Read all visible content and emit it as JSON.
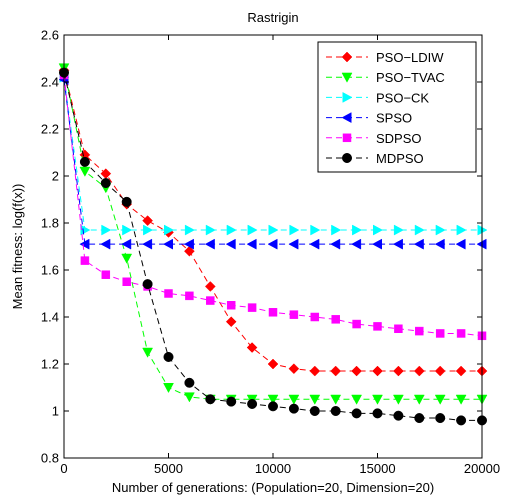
{
  "chart_data": {
    "type": "line",
    "title": "Rastrigin",
    "xlabel": "Number of generations: (Population=20, Dimension=20)",
    "ylabel": "Mean fitness: log(f(x))",
    "xlim": [
      0,
      20000
    ],
    "ylim": [
      0.8,
      2.6
    ],
    "xticks": [
      0,
      5000,
      10000,
      15000,
      20000
    ],
    "xtick_labels": [
      "0",
      "5000",
      "10000",
      "15000",
      "20000"
    ],
    "yticks": [
      0.8,
      1.0,
      1.2,
      1.4,
      1.6,
      1.8,
      2.0,
      2.2,
      2.4,
      2.6
    ],
    "ytick_labels": [
      "0.8",
      "1",
      "1.2",
      "1.4",
      "1.6",
      "1.8",
      "2",
      "2.2",
      "2.4",
      "2.6"
    ],
    "grid": false,
    "legend_position": "top-right",
    "x": [
      0,
      1000,
      2000,
      3000,
      4000,
      5000,
      6000,
      7000,
      8000,
      9000,
      10000,
      11000,
      12000,
      13000,
      14000,
      15000,
      16000,
      17000,
      18000,
      19000,
      20000
    ],
    "series": [
      {
        "name": "PSO−LDIW",
        "color": "#ff0000",
        "marker": "diamond",
        "values": [
          2.45,
          2.09,
          2.01,
          1.88,
          1.81,
          1.76,
          1.68,
          1.53,
          1.38,
          1.27,
          1.2,
          1.18,
          1.17,
          1.17,
          1.17,
          1.17,
          1.17,
          1.17,
          1.17,
          1.17,
          1.17
        ]
      },
      {
        "name": "PSO−TVAC",
        "color": "#00ff00",
        "marker": "triangle-down",
        "values": [
          2.46,
          2.02,
          1.95,
          1.65,
          1.25,
          1.1,
          1.06,
          1.05,
          1.05,
          1.05,
          1.05,
          1.05,
          1.05,
          1.05,
          1.05,
          1.05,
          1.05,
          1.05,
          1.05,
          1.05,
          1.05
        ]
      },
      {
        "name": "PSO−CK",
        "color": "#00ffff",
        "marker": "triangle-right",
        "values": [
          2.42,
          1.77,
          1.77,
          1.77,
          1.77,
          1.77,
          1.77,
          1.77,
          1.77,
          1.77,
          1.77,
          1.77,
          1.77,
          1.77,
          1.77,
          1.77,
          1.77,
          1.77,
          1.77,
          1.77,
          1.77
        ]
      },
      {
        "name": "SPSO",
        "color": "#0000ff",
        "marker": "triangle-left",
        "values": [
          2.41,
          1.71,
          1.71,
          1.71,
          1.71,
          1.71,
          1.71,
          1.71,
          1.71,
          1.71,
          1.71,
          1.71,
          1.71,
          1.71,
          1.71,
          1.71,
          1.71,
          1.71,
          1.71,
          1.71,
          1.71
        ]
      },
      {
        "name": "SDPSO",
        "color": "#ff00ff",
        "marker": "square",
        "values": [
          2.43,
          1.64,
          1.58,
          1.55,
          1.53,
          1.5,
          1.49,
          1.47,
          1.45,
          1.44,
          1.42,
          1.41,
          1.4,
          1.39,
          1.37,
          1.36,
          1.35,
          1.34,
          1.33,
          1.33,
          1.32
        ]
      },
      {
        "name": "MDPSO",
        "color": "#000000",
        "marker": "circle",
        "values": [
          2.44,
          2.06,
          1.97,
          1.89,
          1.54,
          1.23,
          1.12,
          1.05,
          1.04,
          1.03,
          1.02,
          1.01,
          1.0,
          1.0,
          0.99,
          0.99,
          0.98,
          0.97,
          0.97,
          0.96,
          0.96
        ]
      }
    ]
  }
}
